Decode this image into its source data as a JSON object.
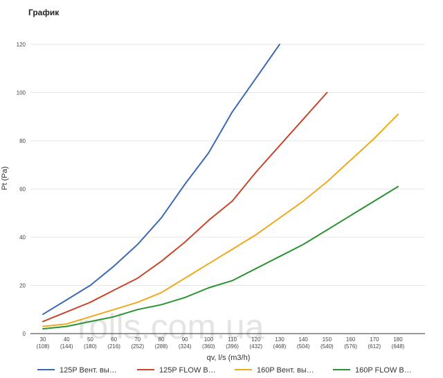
{
  "header": {
    "title": "График"
  },
  "watermark": "rolls.com.ua",
  "chart_data": {
    "type": "line",
    "title": "",
    "xlabel": "qv, l/s (m3/h)",
    "ylabel": "Pt (Pa)",
    "ylim": [
      0,
      120
    ],
    "yticks": [
      0,
      20,
      40,
      60,
      80,
      100,
      120
    ],
    "x": [
      30,
      40,
      50,
      60,
      70,
      80,
      90,
      100,
      110,
      120,
      130,
      140,
      150,
      160,
      170,
      180
    ],
    "x_sub": [
      "(108)",
      "(144)",
      "(180)",
      "(216)",
      "(252)",
      "(288)",
      "(324)",
      "(360)",
      "(396)",
      "(432)",
      "(468)",
      "(504)",
      "(540)",
      "(576)",
      "(612)",
      "(648)"
    ],
    "grid": "horizontal",
    "legend": "bottom",
    "series": [
      {
        "name": "125P Вент. вы…",
        "color": "#3c68b8",
        "x": [
          30,
          40,
          50,
          60,
          70,
          80,
          90,
          100,
          110,
          120,
          130
        ],
        "values": [
          8,
          14,
          20,
          28,
          37,
          48,
          62,
          75,
          92,
          106,
          120
        ]
      },
      {
        "name": "125P FLOW B…",
        "color": "#c8452a",
        "x": [
          30,
          40,
          50,
          60,
          70,
          80,
          90,
          100,
          110,
          120,
          130,
          140,
          150
        ],
        "values": [
          5,
          9,
          13,
          18,
          23,
          30,
          38,
          47,
          55,
          67,
          78,
          89,
          100
        ]
      },
      {
        "name": "160P Вент. вы…",
        "color": "#f0a81c",
        "x": [
          30,
          40,
          50,
          60,
          70,
          80,
          90,
          100,
          110,
          120,
          130,
          140,
          150,
          160,
          170,
          180
        ],
        "values": [
          3,
          4,
          7,
          10,
          13,
          17,
          23,
          29,
          35,
          41,
          48,
          55,
          63,
          72,
          81,
          91
        ]
      },
      {
        "name": "160P FLOW B…",
        "color": "#2a9230",
        "x": [
          30,
          40,
          50,
          60,
          70,
          80,
          90,
          100,
          110,
          120,
          130,
          140,
          150,
          160,
          170,
          180
        ],
        "values": [
          2,
          3,
          5,
          7,
          10,
          12,
          15,
          19,
          22,
          27,
          32,
          37,
          43,
          49,
          55,
          61
        ]
      }
    ]
  }
}
